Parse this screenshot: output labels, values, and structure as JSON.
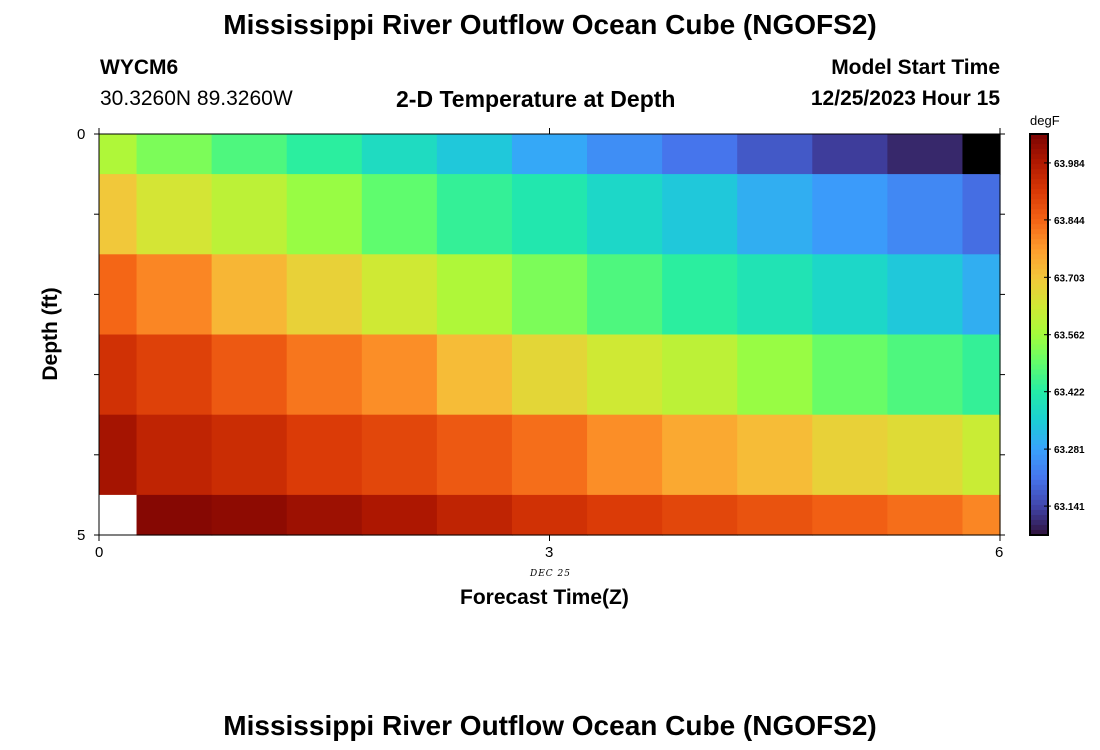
{
  "header": {
    "title": "Mississippi River Outflow Ocean Cube (NGOFS2)",
    "station_id": "WYCM6",
    "coordinates": "30.3260N  89.3260W",
    "plot_title": "2-D Temperature at Depth",
    "model_start_label": "Model Start Time",
    "model_start_value": "12/25/2023 Hour 15"
  },
  "footer": {
    "title": "Mississippi River Outflow Ocean Cube (NGOFS2)"
  },
  "colors": {
    "scale": [
      "#30123b",
      "#4145ab",
      "#4675ed",
      "#39a2fc",
      "#1bcfd4",
      "#24eca6",
      "#61fc6c",
      "#a4fc3b",
      "#d1e834",
      "#f3c63a",
      "#fe9b2d",
      "#f36315",
      "#d93806",
      "#b11901",
      "#7a0403"
    ],
    "missing": "#ffffff"
  },
  "chart_data": {
    "type": "heatmap",
    "title": "2-D Temperature at Depth",
    "xlabel": "Forecast Time(Z)",
    "ylabel": "Depth (ft)",
    "x_tick_labels": [
      "0",
      "3",
      "6"
    ],
    "x_sublabel": "DEC 25",
    "y_tick_labels": [
      "0",
      "5"
    ],
    "xlim": [
      0,
      6
    ],
    "ylim": [
      0,
      5
    ],
    "colorbar": {
      "unit": "degF",
      "min": 63.07,
      "max": 64.055,
      "tick_labels": [
        "63.141",
        "63.281",
        "63.422",
        "63.562",
        "63.703",
        "63.844",
        "63.984"
      ],
      "tick_values": [
        63.141,
        63.281,
        63.422,
        63.562,
        63.703,
        63.844,
        63.984
      ]
    },
    "x_centers": [
      0,
      0.5,
      1,
      1.5,
      2,
      2.5,
      3,
      3.5,
      4,
      4.5,
      5,
      5.5,
      6
    ],
    "y_centers": [
      0,
      1,
      2,
      3,
      4,
      5
    ],
    "values": [
      [
        63.58,
        63.52,
        63.47,
        63.43,
        63.38,
        63.34,
        63.29,
        63.25,
        63.21,
        63.17,
        63.13,
        63.1,
        null
      ],
      [
        63.7,
        63.64,
        63.6,
        63.55,
        63.49,
        63.44,
        63.41,
        63.37,
        63.34,
        63.3,
        63.27,
        63.24,
        63.2
      ],
      [
        63.84,
        63.8,
        63.73,
        63.68,
        63.63,
        63.58,
        63.52,
        63.47,
        63.43,
        63.4,
        63.37,
        63.34,
        63.3
      ],
      [
        63.93,
        63.9,
        63.86,
        63.82,
        63.79,
        63.72,
        63.67,
        63.63,
        63.6,
        63.55,
        63.5,
        63.47,
        63.44
      ],
      [
        64.0,
        63.96,
        63.94,
        63.91,
        63.89,
        63.86,
        63.83,
        63.79,
        63.75,
        63.72,
        63.68,
        63.66,
        63.62
      ],
      [
        null,
        64.04,
        64.03,
        64.01,
        63.99,
        63.96,
        63.93,
        63.91,
        63.89,
        63.87,
        63.85,
        63.83,
        63.8
      ]
    ]
  }
}
